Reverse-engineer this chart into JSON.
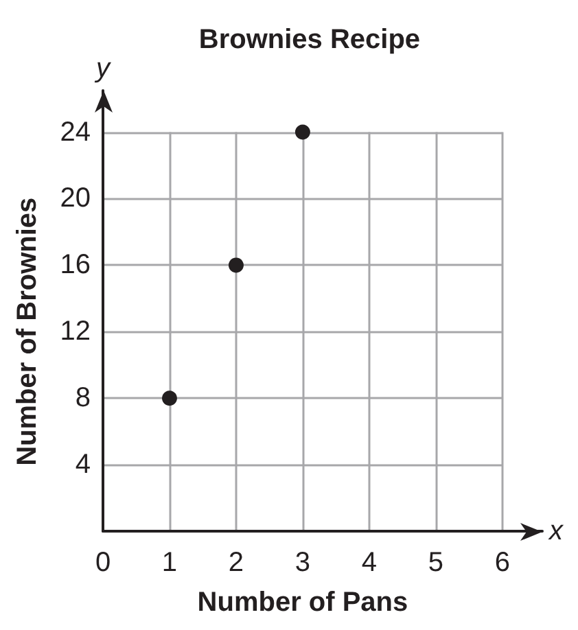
{
  "chart_data": {
    "type": "scatter",
    "title": "Brownies Recipe",
    "xlabel": "Number of Pans",
    "ylabel": "Number of Brownies",
    "annotations": [
      "x",
      "y"
    ],
    "x": [
      1,
      2,
      3
    ],
    "values": [
      8,
      16,
      24
    ],
    "color": "#231f20",
    "marker": "circle",
    "xlim": [
      0,
      6.6
    ],
    "ylim": [
      0,
      26.5
    ],
    "xticks": [
      0,
      1,
      2,
      3,
      4,
      5,
      6
    ],
    "yticks": [
      {
        "value": 0,
        "label": null
      },
      4,
      8,
      12,
      16,
      20,
      24
    ],
    "grid": true
  }
}
